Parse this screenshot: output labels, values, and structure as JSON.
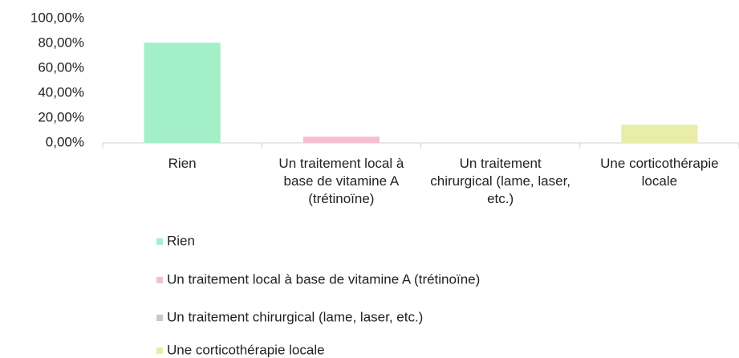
{
  "chart_data": {
    "type": "bar",
    "categories": [
      "Rien",
      "Un traitement local à base de vitamine A (trétinoïne)",
      "Un traitement chirurgical (lame, laser, etc.)",
      "Une corticothérapie locale"
    ],
    "values": [
      80.5,
      5,
      0,
      14.5
    ],
    "colors": [
      "#a3efc8",
      "#f5bfd2",
      "#c8c8c8",
      "#e9eda8"
    ],
    "ylim": [
      0,
      100
    ],
    "yticks": [
      {
        "value": 0,
        "label": "0,00%"
      },
      {
        "value": 20,
        "label": "20,00%"
      },
      {
        "value": 40,
        "label": "40,00%"
      },
      {
        "value": 60,
        "label": "60,00%"
      },
      {
        "value": 80,
        "label": "80,00%"
      },
      {
        "value": 100,
        "label": "100,00%"
      }
    ],
    "grid": false,
    "legend": "bottom"
  }
}
